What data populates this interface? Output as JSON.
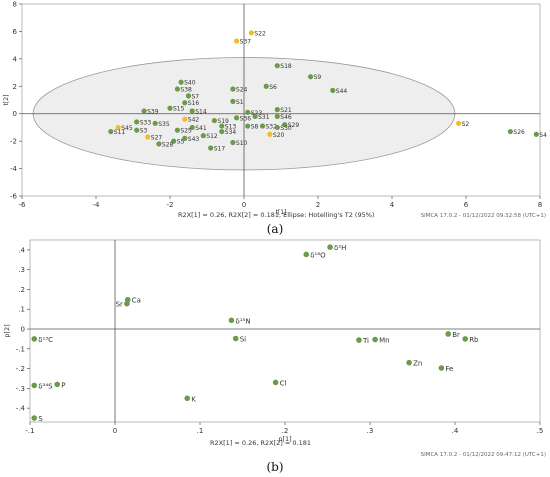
{
  "figure": {
    "label_a": "(a)",
    "label_b": "(b)"
  },
  "colors": {
    "green": "#6a9a4a",
    "yellow": "#f2bb2e",
    "axis": "#555555",
    "frame": "#aaaaaa",
    "ellipse_fill": "#eeeeee"
  },
  "chart_data": [
    {
      "type": "scatter",
      "title": "",
      "xlabel": "t[1]",
      "ylabel": "t[2]",
      "xlim": [
        -6,
        8
      ],
      "ylim": [
        -6,
        8
      ],
      "xticks": [
        -6,
        -4,
        -2,
        0,
        2,
        4,
        6,
        8
      ],
      "yticks": [
        -6,
        -4,
        -2,
        0,
        2,
        4,
        6,
        8
      ],
      "grid": false,
      "footer": "R2X[1] = 0.26, R2X[2] = 0.181, Ellipse: Hotelling's T2 (95%)",
      "software": "SIMCA 17.0.2 - 01/12/2022 09:32:58 (UTC+1)",
      "ellipse": {
        "label": "Hotelling's T2 (95%)",
        "rx": 5.7,
        "ry": 4.1
      },
      "points": [
        {
          "label": "S22",
          "x": 0.2,
          "y": 5.9,
          "color": "yellow"
        },
        {
          "label": "S37",
          "x": -0.2,
          "y": 5.3,
          "color": "yellow"
        },
        {
          "label": "S18",
          "x": 0.9,
          "y": 3.5,
          "color": "green"
        },
        {
          "label": "S9",
          "x": 1.8,
          "y": 2.7,
          "color": "green"
        },
        {
          "label": "S44",
          "x": 2.4,
          "y": 1.7,
          "color": "green"
        },
        {
          "label": "S40",
          "x": -1.7,
          "y": 2.3,
          "color": "green"
        },
        {
          "label": "S38",
          "x": -1.8,
          "y": 1.8,
          "color": "green"
        },
        {
          "label": "S24",
          "x": -0.3,
          "y": 1.8,
          "color": "green"
        },
        {
          "label": "S6",
          "x": 0.6,
          "y": 2.0,
          "color": "green"
        },
        {
          "label": "S7",
          "x": -1.5,
          "y": 1.3,
          "color": "green"
        },
        {
          "label": "S16",
          "x": -1.6,
          "y": 0.8,
          "color": "green"
        },
        {
          "label": "S1",
          "x": -0.3,
          "y": 0.9,
          "color": "green"
        },
        {
          "label": "S15",
          "x": -2.0,
          "y": 0.4,
          "color": "green"
        },
        {
          "label": "S14",
          "x": -1.4,
          "y": 0.2,
          "color": "green"
        },
        {
          "label": "S39",
          "x": -2.7,
          "y": 0.2,
          "color": "green"
        },
        {
          "label": "S21",
          "x": 0.9,
          "y": 0.3,
          "color": "green"
        },
        {
          "label": "S23",
          "x": 0.1,
          "y": 0.1,
          "color": "green"
        },
        {
          "label": "S31",
          "x": 0.3,
          "y": -0.2,
          "color": "green"
        },
        {
          "label": "S46",
          "x": 0.9,
          "y": -0.2,
          "color": "green"
        },
        {
          "label": "S36",
          "x": -0.2,
          "y": -0.3,
          "color": "green"
        },
        {
          "label": "S42",
          "x": -1.6,
          "y": -0.4,
          "color": "yellow"
        },
        {
          "label": "S19",
          "x": -0.8,
          "y": -0.5,
          "color": "green"
        },
        {
          "label": "S2",
          "x": 5.8,
          "y": -0.7,
          "color": "yellow"
        },
        {
          "label": "S8",
          "x": 0.1,
          "y": -0.9,
          "color": "green"
        },
        {
          "label": "S13",
          "x": -0.6,
          "y": -0.9,
          "color": "green"
        },
        {
          "label": "S32",
          "x": 0.5,
          "y": -0.9,
          "color": "green"
        },
        {
          "label": "S29",
          "x": 1.1,
          "y": -0.8,
          "color": "green"
        },
        {
          "label": "S35",
          "x": -2.4,
          "y": -0.7,
          "color": "green"
        },
        {
          "label": "S33",
          "x": -2.9,
          "y": -0.6,
          "color": "green"
        },
        {
          "label": "S30",
          "x": 0.9,
          "y": -1.0,
          "color": "green"
        },
        {
          "label": "S41",
          "x": -1.4,
          "y": -1.0,
          "color": "green"
        },
        {
          "label": "S45",
          "x": -3.4,
          "y": -1.0,
          "color": "yellow"
        },
        {
          "label": "S3",
          "x": -2.9,
          "y": -1.2,
          "color": "green"
        },
        {
          "label": "S25",
          "x": -1.8,
          "y": -1.2,
          "color": "green"
        },
        {
          "label": "S34",
          "x": -0.6,
          "y": -1.3,
          "color": "green"
        },
        {
          "label": "S11",
          "x": -3.6,
          "y": -1.3,
          "color": "green"
        },
        {
          "label": "S26",
          "x": 7.2,
          "y": -1.3,
          "color": "green"
        },
        {
          "label": "S4",
          "x": 7.9,
          "y": -1.5,
          "color": "green"
        },
        {
          "label": "S12",
          "x": -1.1,
          "y": -1.6,
          "color": "green"
        },
        {
          "label": "S27",
          "x": -2.6,
          "y": -1.7,
          "color": "yellow"
        },
        {
          "label": "S43",
          "x": -1.6,
          "y": -1.8,
          "color": "green"
        },
        {
          "label": "S20",
          "x": 0.7,
          "y": -1.5,
          "color": "yellow"
        },
        {
          "label": "S5",
          "x": -1.9,
          "y": -2.0,
          "color": "green"
        },
        {
          "label": "S10",
          "x": -0.3,
          "y": -2.1,
          "color": "green"
        },
        {
          "label": "S28",
          "x": -2.3,
          "y": -2.2,
          "color": "green"
        },
        {
          "label": "S17",
          "x": -0.9,
          "y": -2.5,
          "color": "green"
        }
      ]
    },
    {
      "type": "scatter",
      "title": "",
      "xlabel": "p[1]",
      "ylabel": "p[2]",
      "xlim": [
        -0.1,
        0.5
      ],
      "ylim": [
        -0.47,
        0.45
      ],
      "xticks": [
        -0.1,
        0,
        0.1,
        0.2,
        0.3,
        0.4,
        0.5
      ],
      "yticks": [
        -0.4,
        -0.3,
        -0.2,
        -0.1,
        0,
        0.1,
        0.2,
        0.3,
        0.4
      ],
      "grid": false,
      "footer": "R2X[1] = 0.26, R2X[2] = 0.181",
      "software": "SIMCA 17.0.2 - 01/12/2022 09:47:12 (UTC+1)",
      "points": [
        {
          "label": "δ²H",
          "x": 0.253,
          "y": 0.414
        },
        {
          "label": "δ¹⁸O",
          "x": 0.225,
          "y": 0.377
        },
        {
          "label": "Ca",
          "x": 0.015,
          "y": 0.148
        },
        {
          "label": "Sr",
          "x": 0.014,
          "y": 0.128
        },
        {
          "label": "δ¹⁵N",
          "x": 0.137,
          "y": 0.044
        },
        {
          "label": "Si",
          "x": 0.142,
          "y": -0.048
        },
        {
          "label": "δ¹³C",
          "x": -0.095,
          "y": -0.05
        },
        {
          "label": "Br",
          "x": 0.392,
          "y": -0.025
        },
        {
          "label": "Rb",
          "x": 0.412,
          "y": -0.05
        },
        {
          "label": "Ti",
          "x": 0.287,
          "y": -0.056
        },
        {
          "label": "Mn",
          "x": 0.306,
          "y": -0.053
        },
        {
          "label": "Zn",
          "x": 0.346,
          "y": -0.17
        },
        {
          "label": "Fe",
          "x": 0.384,
          "y": -0.197
        },
        {
          "label": "Cl",
          "x": 0.189,
          "y": -0.27
        },
        {
          "label": "δ³⁴S",
          "x": -0.095,
          "y": -0.285
        },
        {
          "label": "P",
          "x": -0.068,
          "y": -0.28
        },
        {
          "label": "K",
          "x": 0.085,
          "y": -0.35
        },
        {
          "label": "S",
          "x": -0.095,
          "y": -0.45
        }
      ]
    }
  ]
}
